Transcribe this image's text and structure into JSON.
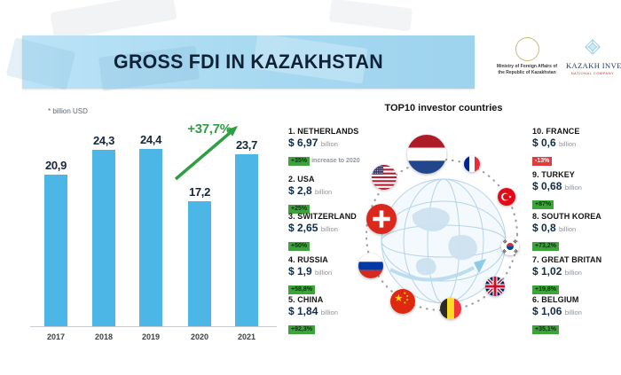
{
  "header": {
    "title": "GROSS FDI IN KAZAKHSTAN",
    "mfa_logo": {
      "line1": "Ministry of Foreign Affairs of",
      "line2": "the Republic of Kazakhstan"
    },
    "invest_logo": {
      "name": "KAZAKH INVEST",
      "subtitle": "NATIONAL COMPANY"
    }
  },
  "chart_data": {
    "type": "bar",
    "title": "GROSS FDI IN KAZAKHSTAN",
    "note": "* billion USD",
    "ylabel": "billion USD",
    "categories": [
      "2017",
      "2018",
      "2019",
      "2020",
      "2021"
    ],
    "values": [
      20.9,
      24.3,
      24.4,
      17.2,
      23.7
    ],
    "value_labels": [
      "20,9",
      "24,3",
      "24,4",
      "17,2",
      "23,7"
    ],
    "growth_annotation": "+37,7%",
    "ylim": [
      0,
      26
    ],
    "grid": false,
    "bar_color": "#4cb6e6"
  },
  "investors": {
    "title": "TOP10 investor countries",
    "left": [
      {
        "rank": "1.",
        "country": "NETHERLANDS",
        "amount": "$ 6,97",
        "unit": "billion",
        "change": "+35%",
        "change_note": "increase to 2020",
        "positive": true,
        "flag": "nl"
      },
      {
        "rank": "2.",
        "country": "USA",
        "amount": "$ 2,8",
        "unit": "billion",
        "change": "+25%",
        "positive": true,
        "flag": "us"
      },
      {
        "rank": "3.",
        "country": "SWITZERLAND",
        "amount": "$ 2,65",
        "unit": "billion",
        "change": "+50%",
        "positive": true,
        "flag": "ch"
      },
      {
        "rank": "4.",
        "country": "RUSSIA",
        "amount": "$ 1,9",
        "unit": "billion",
        "change": "+58,8%",
        "positive": true,
        "flag": "ru"
      },
      {
        "rank": "5.",
        "country": "CHINA",
        "amount": "$ 1,84",
        "unit": "billion",
        "change": "+92,3%",
        "positive": true,
        "flag": "cn"
      }
    ],
    "right": [
      {
        "rank": "10.",
        "country": "FRANCE",
        "amount": "$ 0,6",
        "unit": "billion",
        "change": "-13%",
        "positive": false,
        "flag": "fr"
      },
      {
        "rank": "9.",
        "country": "TURKEY",
        "amount": "$ 0,68",
        "unit": "billion",
        "change": "+87%",
        "positive": true,
        "flag": "tr"
      },
      {
        "rank": "8.",
        "country": "SOUTH KOREA",
        "amount": "$ 0,8",
        "unit": "billion",
        "change": "+73,2%",
        "positive": true,
        "flag": "kr"
      },
      {
        "rank": "7.",
        "country": "GREAT BRITAN",
        "amount": "$ 1,02",
        "unit": "billion",
        "change": "+19,8%",
        "positive": true,
        "flag": "gb"
      },
      {
        "rank": "6.",
        "country": "BELGIUM",
        "amount": "$ 1,06",
        "unit": "billion",
        "change": "+35,1%",
        "positive": true,
        "flag": "be"
      }
    ],
    "flag_ring": [
      "nl",
      "fr",
      "tr",
      "kr",
      "gb",
      "be",
      "cn",
      "ru",
      "ch",
      "us"
    ]
  },
  "colors": {
    "bar_blue": "#4cb6e6",
    "header_band": "#a6d9f1",
    "navy_text": "#15273c",
    "positive_badge": "#3fa33c",
    "negative_badge": "#e03c3c",
    "growth_arrow": "#2f9e44"
  }
}
